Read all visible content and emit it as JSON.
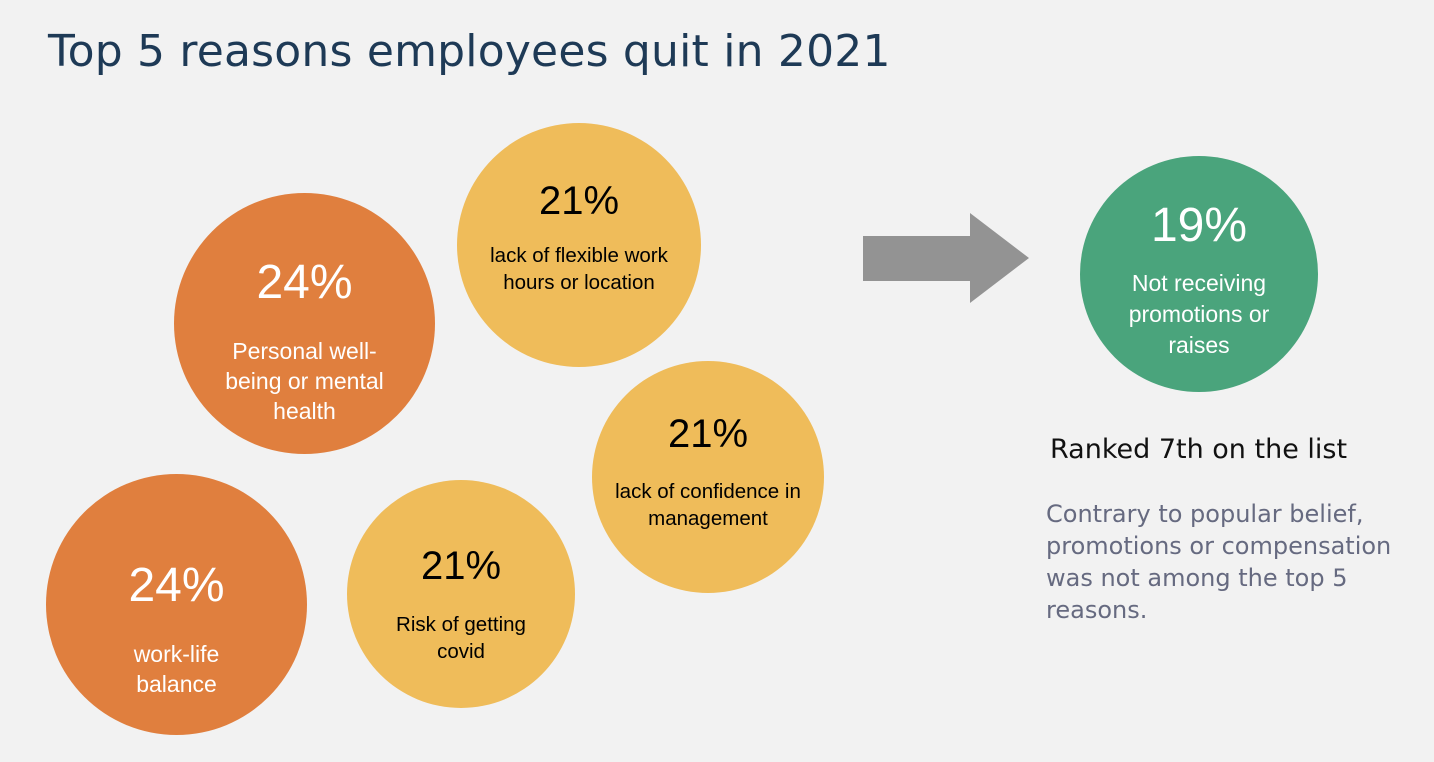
{
  "title": "Top 5 reasons employees quit in 2021",
  "colors": {
    "background": "#f2f2f2",
    "title": "#1e3a56",
    "orange": "#e07f3e",
    "yellow": "#efbc5a",
    "green": "#4aa47c",
    "arrow": "#939393"
  },
  "reasons": [
    {
      "percent": "24%",
      "label": "Personal well-being or mental health",
      "color": "#e07f3e",
      "text_color": "#ffffff"
    },
    {
      "percent": "21%",
      "label": "lack of flexible work hours or location",
      "color": "#efbc5a",
      "text_color": "#000000"
    },
    {
      "percent": "21%",
      "label": "lack of confidence in management",
      "color": "#efbc5a",
      "text_color": "#000000"
    },
    {
      "percent": "21%",
      "label": "Risk of getting covid",
      "color": "#efbc5a",
      "text_color": "#000000"
    },
    {
      "percent": "24%",
      "label": "work-life balance",
      "color": "#e07f3e",
      "text_color": "#ffffff"
    }
  ],
  "highlight": {
    "percent": "19%",
    "label": "Not receiving promotions or raises",
    "color": "#4aa47c",
    "text_color": "#ffffff",
    "arrow_icon": "right-arrow-icon"
  },
  "rank_text": "Ranked 7th on the list",
  "note": "Contrary to popular belief, promotions or compensation was not among the top 5 reasons."
}
